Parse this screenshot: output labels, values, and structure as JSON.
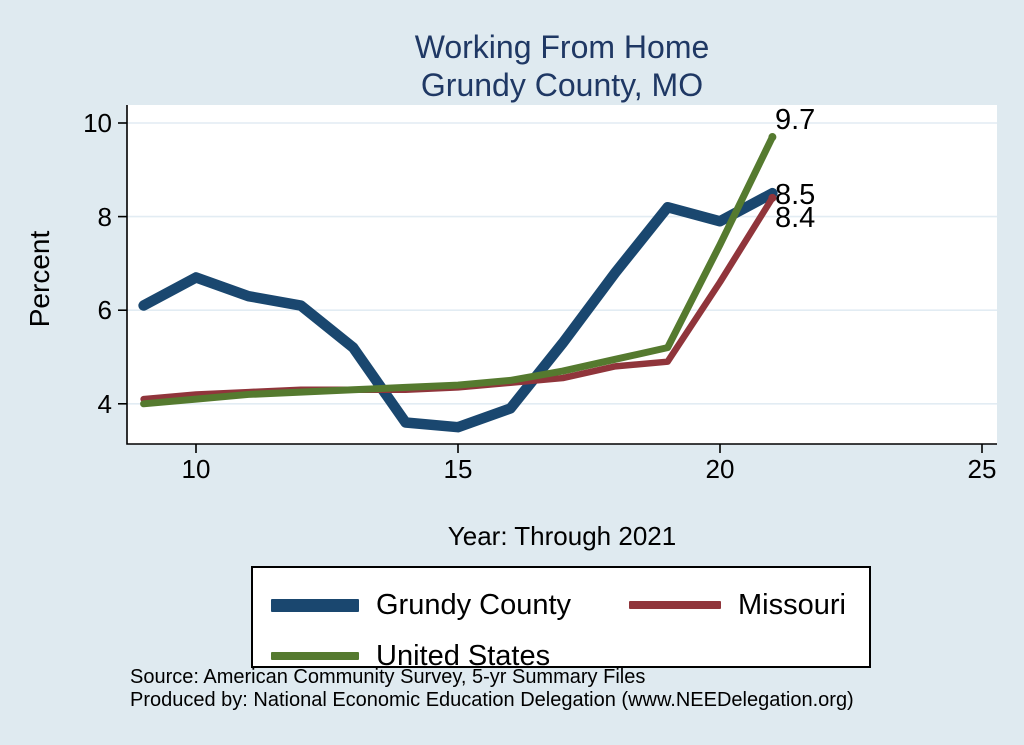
{
  "title": {
    "line1": "Working From Home",
    "line2": "Grundy County, MO"
  },
  "chart_data": {
    "type": "line",
    "title": "Working From Home — Grundy County, MO",
    "xlabel": "Year: Through 2021",
    "ylabel": "Percent",
    "x": [
      9,
      10,
      11,
      12,
      13,
      14,
      15,
      16,
      17,
      18,
      19,
      20,
      21
    ],
    "series": [
      {
        "name": "Grundy County",
        "color": "#1a476f",
        "line_width": 10.5,
        "values": [
          6.1,
          6.7,
          6.3,
          6.1,
          5.2,
          3.6,
          3.5,
          3.9,
          5.3,
          6.8,
          8.2,
          7.9,
          8.5
        ],
        "end_label": "8.5"
      },
      {
        "name": "Missouri",
        "color": "#90353b",
        "line_width": 6.5,
        "values": [
          4.1,
          4.2,
          4.25,
          4.3,
          4.3,
          4.3,
          4.35,
          4.45,
          4.55,
          4.8,
          4.9,
          6.6,
          8.4
        ],
        "end_label": "8.4"
      },
      {
        "name": "United States",
        "color": "#557a2f",
        "line_width": 7,
        "values": [
          4.0,
          4.1,
          4.2,
          4.25,
          4.3,
          4.35,
          4.4,
          4.5,
          4.7,
          4.95,
          5.2,
          7.4,
          9.7
        ],
        "end_label": "9.7"
      }
    ],
    "x_ticks": [
      {
        "value": 10,
        "label": "10"
      },
      {
        "value": 15,
        "label": "15"
      },
      {
        "value": 20,
        "label": "20"
      },
      {
        "value": 25,
        "label": "25"
      }
    ],
    "y_ticks": [
      {
        "value": 4,
        "label": "4"
      },
      {
        "value": 6,
        "label": "6"
      },
      {
        "value": 8,
        "label": "8"
      },
      {
        "value": 10,
        "label": "10"
      }
    ],
    "xlim": [
      8.7,
      25.3
    ],
    "ylim": [
      3.2,
      10.5
    ],
    "grid": "horizontal gridlines at y ticks",
    "legend_position": "bottom"
  },
  "colors": {
    "page_background": "#dfeaf0",
    "plot_background": "#ffffff",
    "gridline": "#e2ecf3",
    "axis": "#000000",
    "title_text": "#1f3864"
  },
  "footer": {
    "source": "Source: American Community Survey, 5-yr Summary Files",
    "produced": "Produced by: National Economic Education Delegation (www.NEEDelegation.org)"
  }
}
